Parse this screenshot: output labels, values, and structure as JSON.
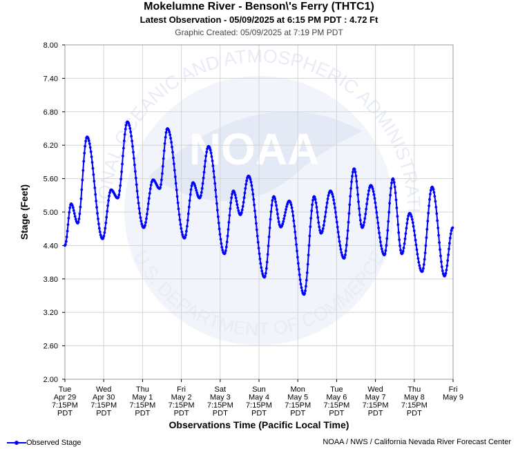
{
  "header": {
    "title": "Mokelumne River - Benson\\'s Ferry (THTC1)",
    "subtitle": "Latest Observation - 05/09/2025 at 6:15 PM PDT : 4.72 Ft",
    "created": "Graphic Created: 05/09/2025 at 7:19 PM PDT"
  },
  "footer": {
    "legend_label": "Observed Stage",
    "credit": "NOAA / NWS / California Nevada River Forecast Center"
  },
  "colors": {
    "series": "#0000ff",
    "grid": "#d3d3d3",
    "watermark": "#e8ecf7"
  },
  "watermark": {
    "logo_text": "NOAA",
    "ring_top": "NATIONAL OCEANIC AND ATMOSPHERIC ADMINISTRATION",
    "ring_bottom": "U.S. DEPARTMENT OF COMMERCE"
  },
  "chart_data": {
    "type": "line",
    "xlabel": "Observations Time (Pacific Local Time)",
    "ylabel": "Stage (Feet)",
    "ylim": [
      2.0,
      8.0
    ],
    "yticks": [
      "2.00",
      "2.60",
      "3.20",
      "3.80",
      "4.40",
      "5.00",
      "5.60",
      "6.20",
      "6.80",
      "7.40",
      "8.00"
    ],
    "xlim_days": [
      0,
      10
    ],
    "xticks": [
      [
        "Tue",
        "Apr 29",
        "7:15PM",
        "PDT"
      ],
      [
        "Wed",
        "Apr 30",
        "7:15PM",
        "PDT"
      ],
      [
        "Thu",
        "May 1",
        "7:15PM",
        "PDT"
      ],
      [
        "Fri",
        "May 2",
        "7:15PM",
        "PDT"
      ],
      [
        "Sat",
        "May 3",
        "7:15PM",
        "PDT"
      ],
      [
        "Sun",
        "May 4",
        "7:15PM",
        "PDT"
      ],
      [
        "Mon",
        "May 5",
        "7:15PM",
        "PDT"
      ],
      [
        "Tue",
        "May 6",
        "7:15PM",
        "PDT"
      ],
      [
        "Wed",
        "May 7",
        "7:15PM",
        "PDT"
      ],
      [
        "Thu",
        "May 8",
        "7:15PM",
        "PDT"
      ],
      [
        "Fri",
        "May 9",
        "",
        ""
      ]
    ],
    "grid": true,
    "series": [
      {
        "name": "Observed Stage",
        "points": [
          [
            0.0,
            4.4
          ],
          [
            0.16,
            5.15
          ],
          [
            0.33,
            4.8
          ],
          [
            0.57,
            6.35
          ],
          [
            0.97,
            4.52
          ],
          [
            1.19,
            5.4
          ],
          [
            1.36,
            5.25
          ],
          [
            1.61,
            6.62
          ],
          [
            2.03,
            4.72
          ],
          [
            2.27,
            5.58
          ],
          [
            2.44,
            5.42
          ],
          [
            2.64,
            6.5
          ],
          [
            3.08,
            4.53
          ],
          [
            3.3,
            5.53
          ],
          [
            3.47,
            5.25
          ],
          [
            3.7,
            6.18
          ],
          [
            4.11,
            4.25
          ],
          [
            4.34,
            5.38
          ],
          [
            4.52,
            4.95
          ],
          [
            4.73,
            5.65
          ],
          [
            5.14,
            3.83
          ],
          [
            5.38,
            5.28
          ],
          [
            5.56,
            4.73
          ],
          [
            5.78,
            5.2
          ],
          [
            6.16,
            3.52
          ],
          [
            6.42,
            5.28
          ],
          [
            6.6,
            4.62
          ],
          [
            6.84,
            5.38
          ],
          [
            7.19,
            4.17
          ],
          [
            7.45,
            5.78
          ],
          [
            7.66,
            4.72
          ],
          [
            7.88,
            5.48
          ],
          [
            8.23,
            4.23
          ],
          [
            8.45,
            5.6
          ],
          [
            8.68,
            4.25
          ],
          [
            8.88,
            4.98
          ],
          [
            9.2,
            3.93
          ],
          [
            9.46,
            5.45
          ],
          [
            9.78,
            3.85
          ],
          [
            9.99,
            4.72
          ]
        ]
      }
    ]
  }
}
